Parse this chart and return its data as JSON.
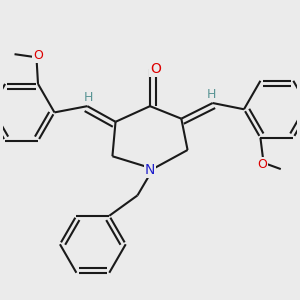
{
  "bg_color": "#ebebeb",
  "bond_color": "#1a1a1a",
  "bond_width": 1.5,
  "dbo": 0.018,
  "atom_colors": {
    "O": "#dd0000",
    "N": "#2020cc",
    "H": "#5a9595",
    "C": "#1a1a1a"
  },
  "font_size_atom": 10,
  "font_size_H": 9
}
